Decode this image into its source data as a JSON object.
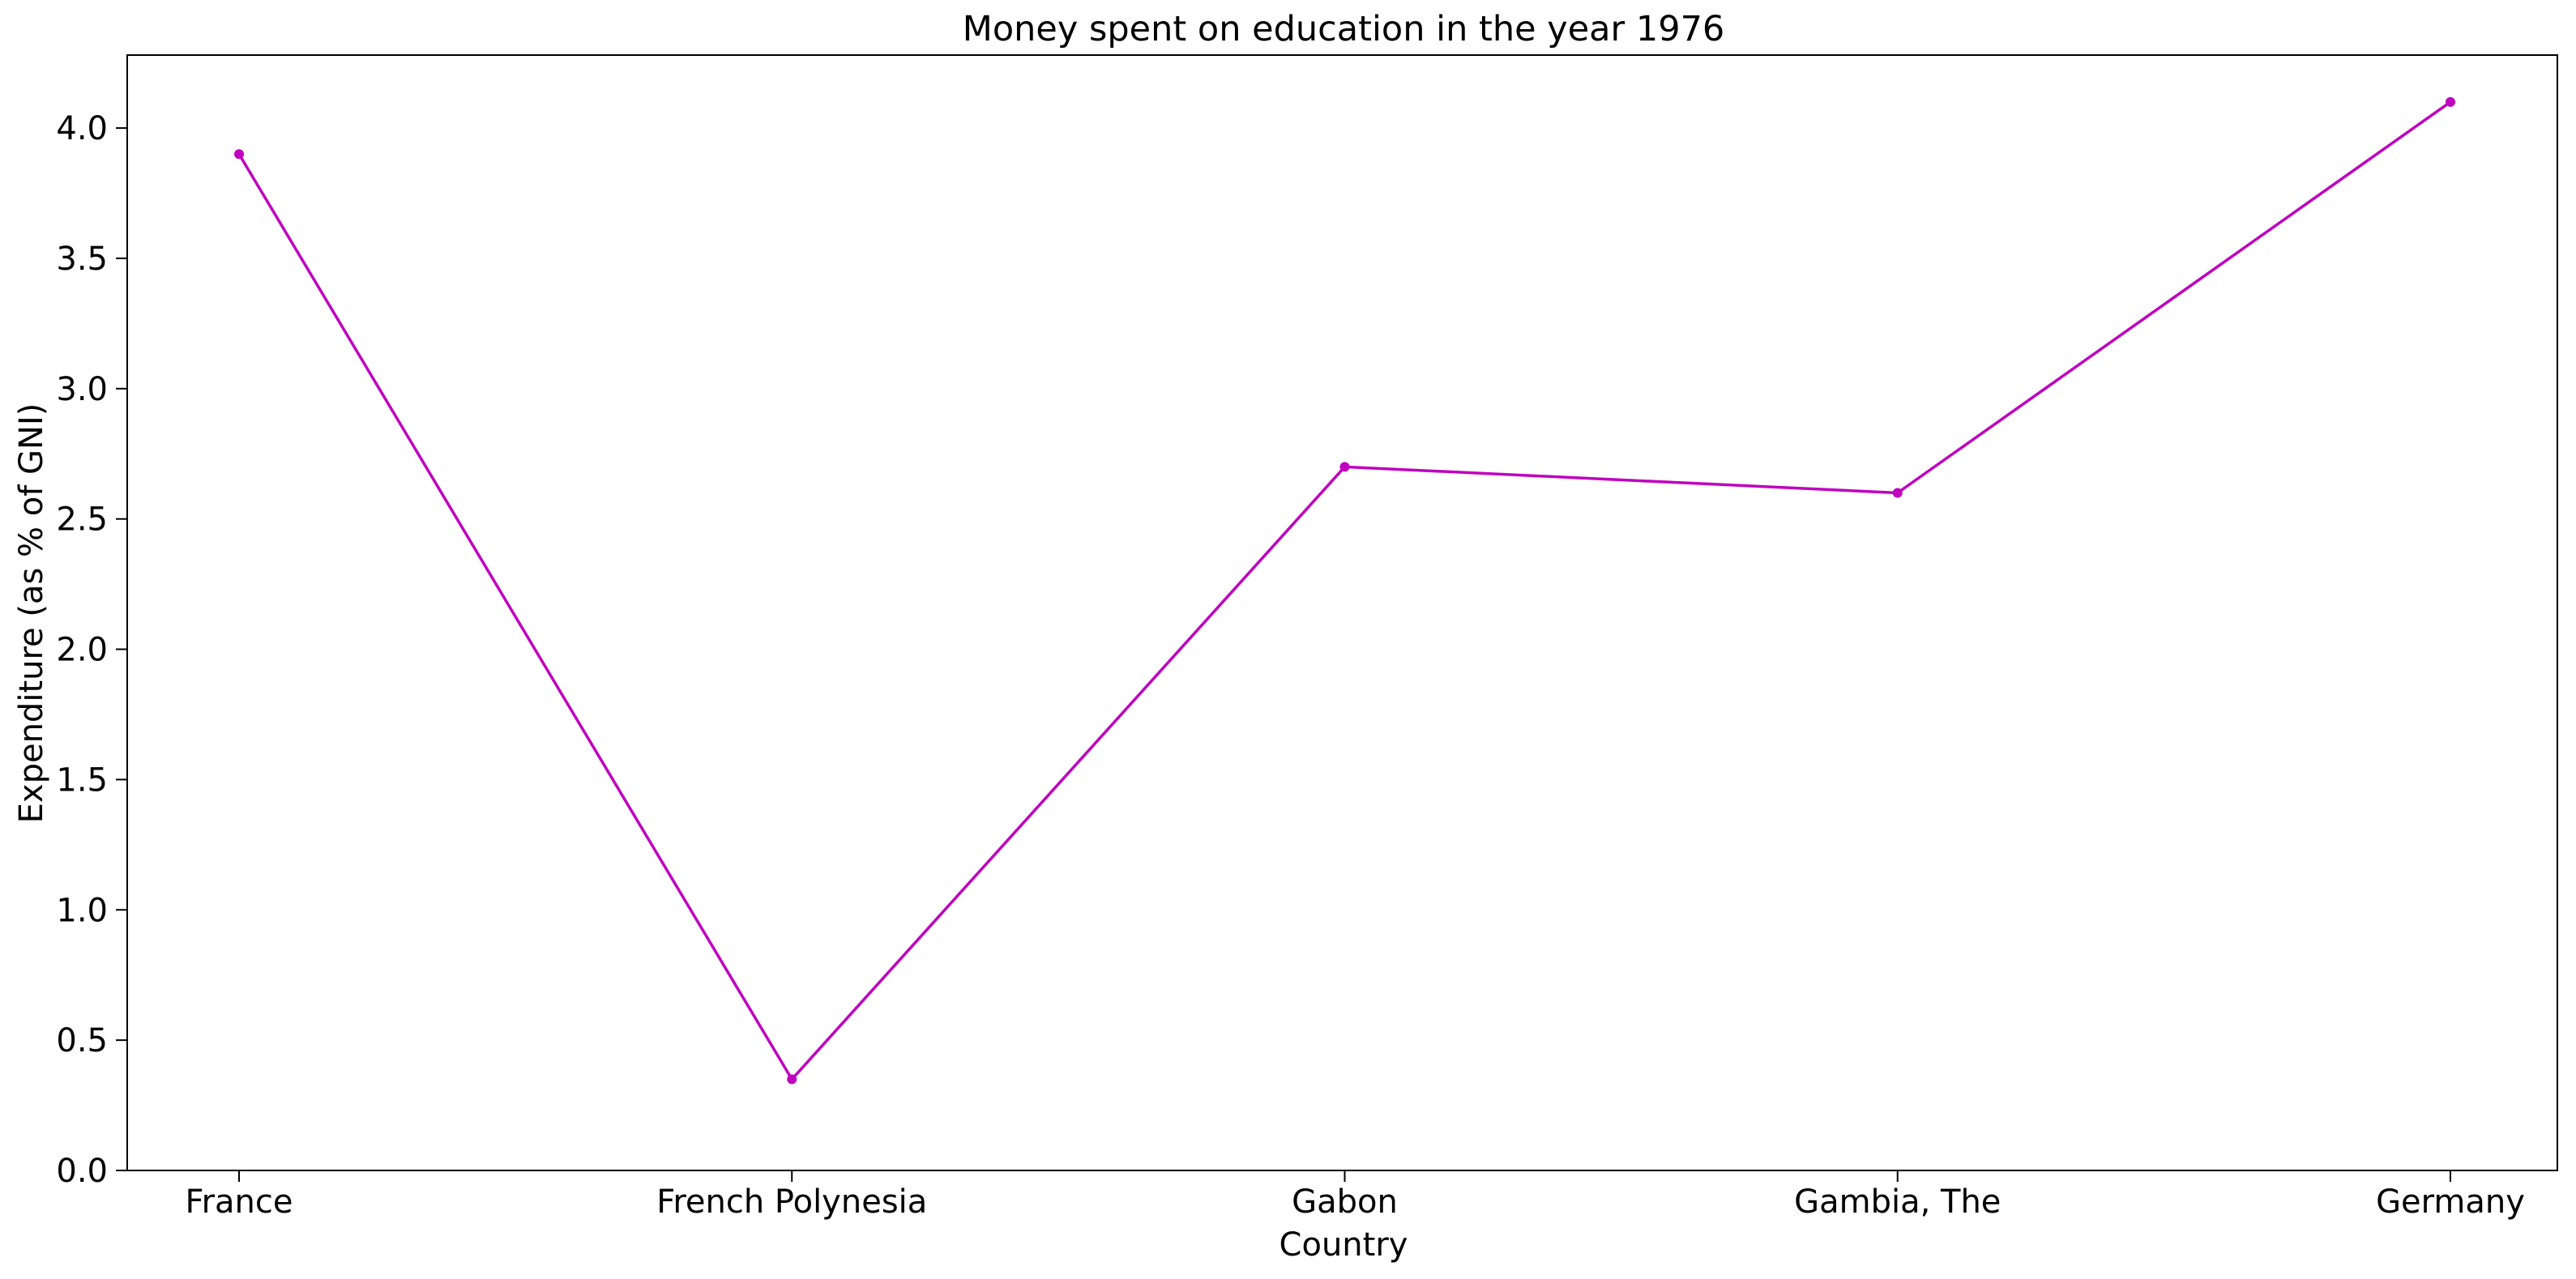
{
  "chart_data": {
    "type": "line",
    "title": "Money spent on education in the year 1976",
    "xlabel": "Country",
    "ylabel": "Expenditure (as % of GNI)",
    "categories": [
      "France",
      "French Polynesia",
      "Gabon",
      "Gambia, The",
      "Germany"
    ],
    "series": [
      {
        "values": [
          3.9,
          0.35,
          2.7,
          2.6,
          4.1
        ]
      }
    ],
    "ylim": [
      0,
      4.28
    ],
    "yticks": [
      "0.0",
      "0.5",
      "1.0",
      "1.5",
      "2.0",
      "2.5",
      "3.0",
      "3.5",
      "4.0"
    ],
    "grid": false,
    "legend": "none",
    "line_color": "#bf00bf"
  }
}
